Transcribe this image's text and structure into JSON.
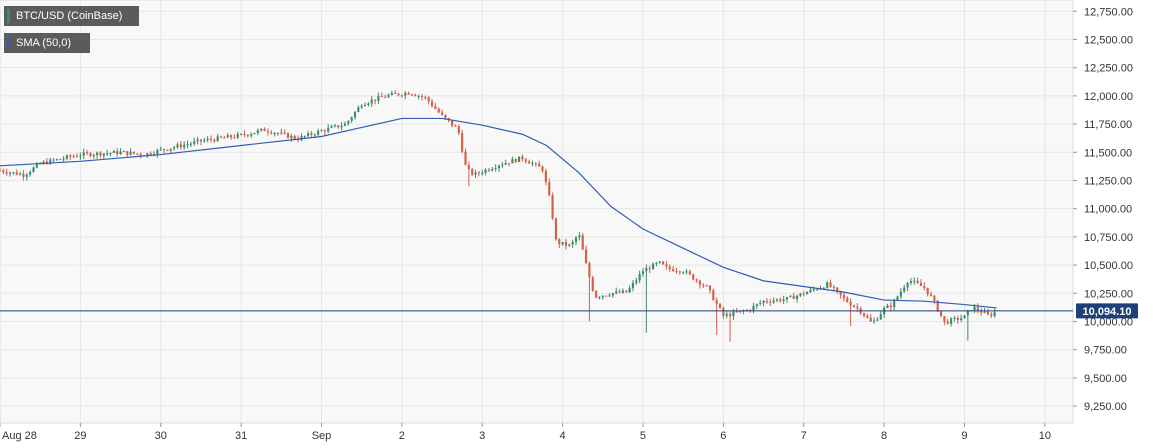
{
  "legend": {
    "price_label": "BTC/USD (CoinBase)",
    "sma_label": "SMA (50,0)"
  },
  "colors": {
    "up": "#3c8c6c",
    "down": "#d0604a",
    "sma": "#2f5fb0",
    "price_line": "#1f3f7a",
    "price_tag_bg": "#1f3f7a",
    "grid": "#e6e6e6",
    "plot_bg": "#f8f8f8",
    "legend_bg": "#5b5b5b",
    "legend_price_swatch": "#3c8c6c",
    "legend_sma_swatch": "#2f5fb0"
  },
  "chart_data": {
    "type": "candlestick",
    "title": "",
    "xlabel": "",
    "ylabel": "",
    "ylim": [
      9100,
      12850
    ],
    "xlim": [
      0,
      13.35
    ],
    "y_ticks": [
      "9,250.00",
      "9,500.00",
      "9,750.00",
      "10,000.00",
      "10,250.00",
      "10,500.00",
      "10,750.00",
      "11,000.00",
      "11,250.00",
      "11,500.00",
      "11,750.00",
      "12,000.00",
      "12,250.00",
      "12,500.00",
      "12,750.00"
    ],
    "x_tick_labels": [
      "Aug 28",
      "29",
      "30",
      "31",
      "Sep",
      "2",
      "3",
      "4",
      "5",
      "6",
      "7",
      "8",
      "9",
      "10"
    ],
    "grid": true,
    "current_price": 10094.1,
    "current_price_label": "10,094.10",
    "keypoints": [
      [
        0,
        11340
      ],
      [
        0.3,
        11300
      ],
      [
        0.5,
        11400
      ],
      [
        1.0,
        11480
      ],
      [
        1.5,
        11500
      ],
      [
        1.8,
        11480
      ],
      [
        2.0,
        11520
      ],
      [
        2.5,
        11600
      ],
      [
        3.0,
        11650
      ],
      [
        3.3,
        11700
      ],
      [
        3.7,
        11620
      ],
      [
        4.0,
        11690
      ],
      [
        4.3,
        11750
      ],
      [
        4.5,
        11930
      ],
      [
        4.8,
        12000
      ],
      [
        5.1,
        12030
      ],
      [
        5.3,
        11980
      ],
      [
        5.5,
        11820
      ],
      [
        5.7,
        11700
      ],
      [
        5.8,
        11350
      ],
      [
        5.9,
        11300
      ],
      [
        6.2,
        11390
      ],
      [
        6.5,
        11450
      ],
      [
        6.75,
        11350
      ],
      [
        6.85,
        11050
      ],
      [
        6.92,
        10700
      ],
      [
        7.1,
        10670
      ],
      [
        7.2,
        10780
      ],
      [
        7.3,
        10480
      ],
      [
        7.4,
        10220
      ],
      [
        7.6,
        10250
      ],
      [
        7.8,
        10260
      ],
      [
        8.0,
        10450
      ],
      [
        8.2,
        10520
      ],
      [
        8.3,
        10470
      ],
      [
        8.5,
        10450
      ],
      [
        8.8,
        10300
      ],
      [
        9.0,
        10050
      ],
      [
        9.3,
        10100
      ],
      [
        9.5,
        10180
      ],
      [
        9.8,
        10200
      ],
      [
        10.0,
        10250
      ],
      [
        10.3,
        10330
      ],
      [
        10.5,
        10200
      ],
      [
        10.7,
        10100
      ],
      [
        10.85,
        9980
      ],
      [
        11.0,
        10110
      ],
      [
        11.1,
        10150
      ],
      [
        11.3,
        10370
      ],
      [
        11.5,
        10300
      ],
      [
        11.6,
        10200
      ],
      [
        11.75,
        9990
      ],
      [
        12.0,
        10040
      ],
      [
        12.1,
        10130
      ],
      [
        12.3,
        10050
      ],
      [
        12.4,
        10090
      ]
    ],
    "sma": [
      [
        0,
        11380
      ],
      [
        1.0,
        11420
      ],
      [
        2.0,
        11480
      ],
      [
        3.0,
        11560
      ],
      [
        4.0,
        11640
      ],
      [
        4.5,
        11720
      ],
      [
        5.0,
        11800
      ],
      [
        5.5,
        11800
      ],
      [
        6.0,
        11740
      ],
      [
        6.5,
        11660
      ],
      [
        6.8,
        11560
      ],
      [
        7.2,
        11320
      ],
      [
        7.6,
        11020
      ],
      [
        8.0,
        10820
      ],
      [
        8.5,
        10650
      ],
      [
        9.0,
        10480
      ],
      [
        9.5,
        10360
      ],
      [
        10.0,
        10310
      ],
      [
        10.5,
        10260
      ],
      [
        11.0,
        10190
      ],
      [
        11.5,
        10180
      ],
      [
        12.0,
        10150
      ],
      [
        12.4,
        10120
      ]
    ],
    "candles": []
  }
}
